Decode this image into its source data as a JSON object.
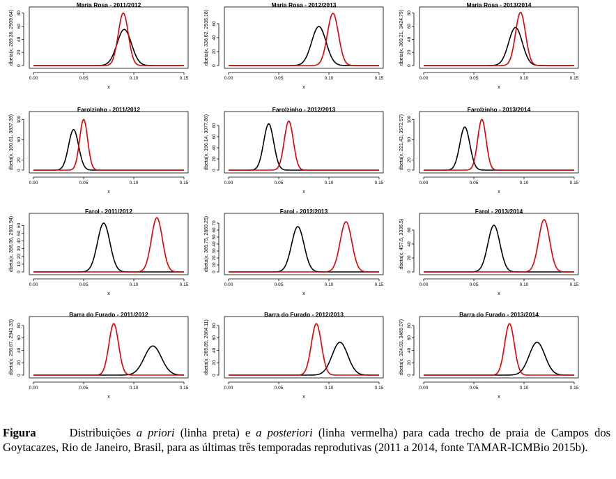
{
  "chart_data": [
    {
      "type": "line",
      "title": "Maria Rosa - 2011/2012",
      "ylabel": "dbeta(x, 289.36, 2909.64)",
      "xlabel": "x",
      "xlim": [
        0,
        0.15
      ],
      "xticks": [
        "0.00",
        "0.05",
        "0.10",
        "0.15"
      ],
      "yticks": [
        "0",
        "20",
        "40",
        "60",
        "80"
      ],
      "ylim": [
        0,
        85
      ],
      "series": [
        {
          "color": "#000000",
          "mean": 0.0905,
          "sd": 0.0072,
          "peak": 55
        },
        {
          "color": "#e00000",
          "mean": 0.0895,
          "sd": 0.005,
          "peak": 80
        }
      ]
    },
    {
      "type": "line",
      "title": "Maria Rosa - 2012/2013",
      "ylabel": "dbeta(x, 338.62, 2935.18)",
      "xlabel": "x",
      "xlim": [
        0,
        0.15
      ],
      "xticks": [
        "0.00",
        "0.05",
        "0.10",
        "0.15"
      ],
      "yticks": [
        "0",
        "20",
        "40",
        "60"
      ],
      "ylim": [
        0,
        80
      ],
      "series": [
        {
          "color": "#000000",
          "mean": 0.09,
          "sd": 0.0072,
          "peak": 56
        },
        {
          "color": "#e00000",
          "mean": 0.104,
          "sd": 0.0055,
          "peak": 75
        }
      ]
    },
    {
      "type": "line",
      "title": "Maria Rosa - 2013/2014",
      "ylabel": "dbeta(x, 369.21, 3424.79)",
      "xlabel": "x",
      "xlim": [
        0,
        0.15
      ],
      "xticks": [
        "0.00",
        "0.05",
        "0.10",
        "0.15"
      ],
      "yticks": [
        "0",
        "20",
        "40",
        "60",
        "80"
      ],
      "ylim": [
        0,
        85
      ],
      "series": [
        {
          "color": "#000000",
          "mean": 0.0915,
          "sd": 0.0068,
          "peak": 58
        },
        {
          "color": "#e00000",
          "mean": 0.0965,
          "sd": 0.005,
          "peak": 81
        }
      ]
    },
    {
      "type": "line",
      "title": "Farolzinho - 2011/2012",
      "ylabel": "dbeta(x, 160.61, 3837.39)",
      "xlabel": "x",
      "xlim": [
        0,
        0.15
      ],
      "xticks": [
        "0.00",
        "0.05",
        "0.10",
        "0.15"
      ],
      "yticks": [
        "0",
        "20",
        "60",
        "100"
      ],
      "ylim": [
        0,
        110
      ],
      "series": [
        {
          "color": "#000000",
          "mean": 0.04,
          "sd": 0.005,
          "peak": 80
        },
        {
          "color": "#e00000",
          "mean": 0.05,
          "sd": 0.004,
          "peak": 100
        }
      ]
    },
    {
      "type": "line",
      "title": "Farolzinho - 2012/2013",
      "ylabel": "dbeta(x, 196.14, 3077.86)",
      "xlabel": "x",
      "xlim": [
        0,
        0.15
      ],
      "xticks": [
        "0.00",
        "0.05",
        "0.10",
        "0.15"
      ],
      "yticks": [
        "0",
        "20",
        "40",
        "60",
        "80"
      ],
      "ylim": [
        0,
        100
      ],
      "series": [
        {
          "color": "#000000",
          "mean": 0.04,
          "sd": 0.005,
          "peak": 83
        },
        {
          "color": "#e00000",
          "mean": 0.06,
          "sd": 0.0045,
          "peak": 88
        }
      ]
    },
    {
      "type": "line",
      "title": "Farolzinho - 2013/2014",
      "ylabel": "dbeta(x, 221.43, 3572.57)",
      "xlabel": "x",
      "xlim": [
        0,
        0.15
      ],
      "xticks": [
        "0.00",
        "0.05",
        "0.10",
        "0.15"
      ],
      "yticks": [
        "0",
        "20",
        "60",
        "100"
      ],
      "ylim": [
        0,
        110
      ],
      "series": [
        {
          "color": "#000000",
          "mean": 0.041,
          "sd": 0.005,
          "peak": 85
        },
        {
          "color": "#e00000",
          "mean": 0.058,
          "sd": 0.0042,
          "peak": 100
        }
      ]
    },
    {
      "type": "line",
      "title": "Farol - 2011/2012",
      "ylabel": "dbeta(x, 398.06, 2601.94)",
      "xlabel": "x",
      "xlim": [
        0,
        0.15
      ],
      "xticks": [
        "0.00",
        "0.05",
        "0.10",
        "0.15"
      ],
      "yticks": [
        "0",
        "10",
        "20",
        "30",
        "40",
        "50",
        "60"
      ],
      "ylim": [
        0,
        72
      ],
      "series": [
        {
          "color": "#000000",
          "mean": 0.07,
          "sd": 0.0062,
          "peak": 63
        },
        {
          "color": "#e00000",
          "mean": 0.123,
          "sd": 0.0055,
          "peak": 70
        }
      ]
    },
    {
      "type": "line",
      "title": "Farol - 2012/2013",
      "ylabel": "dbeta(x, 389.75, 2860.25)",
      "xlabel": "x",
      "xlim": [
        0,
        0.15
      ],
      "xticks": [
        "0.00",
        "0.05",
        "0.10",
        "0.15"
      ],
      "yticks": [
        "0",
        "10",
        "20",
        "30",
        "40",
        "50",
        "60",
        "70"
      ],
      "ylim": [
        0,
        80
      ],
      "series": [
        {
          "color": "#000000",
          "mean": 0.069,
          "sd": 0.0062,
          "peak": 65
        },
        {
          "color": "#e00000",
          "mean": 0.117,
          "sd": 0.0058,
          "peak": 72
        }
      ]
    },
    {
      "type": "line",
      "title": "Farol - 2013/2014",
      "ylabel": "dbeta(x, 457.5, 3336.5)",
      "xlabel": "x",
      "xlim": [
        0,
        0.15
      ],
      "xticks": [
        "0.00",
        "0.05",
        "0.10",
        "0.15"
      ],
      "yticks": [
        "0",
        "20",
        "40",
        "60"
      ],
      "ylim": [
        0,
        80
      ],
      "series": [
        {
          "color": "#000000",
          "mean": 0.07,
          "sd": 0.006,
          "peak": 67
        },
        {
          "color": "#e00000",
          "mean": 0.12,
          "sd": 0.0055,
          "peak": 75
        }
      ]
    },
    {
      "type": "line",
      "title": "Barra do Furado - 2011/2012",
      "ylabel": "dbeta(x, 256.67, 2941.33)",
      "xlabel": "x",
      "xlim": [
        0,
        0.15
      ],
      "xticks": [
        "0.00",
        "0.05",
        "0.10",
        "0.15"
      ],
      "yticks": [
        "0",
        "20",
        "40",
        "60",
        "80"
      ],
      "ylim": [
        0,
        90
      ],
      "series": [
        {
          "color": "#000000",
          "mean": 0.119,
          "sd": 0.0085,
          "peak": 47
        },
        {
          "color": "#e00000",
          "mean": 0.08,
          "sd": 0.0048,
          "peak": 83
        }
      ]
    },
    {
      "type": "line",
      "title": "Barra do Furado - 2012/2013",
      "ylabel": "dbeta(x, 289.89, 2664.11)",
      "xlabel": "x",
      "xlim": [
        0,
        0.15
      ],
      "xticks": [
        "0.00",
        "0.05",
        "0.10",
        "0.15"
      ],
      "yticks": [
        "0",
        "20",
        "40",
        "60",
        "80"
      ],
      "ylim": [
        0,
        90
      ],
      "series": [
        {
          "color": "#000000",
          "mean": 0.111,
          "sd": 0.0078,
          "peak": 53
        },
        {
          "color": "#e00000",
          "mean": 0.0875,
          "sd": 0.005,
          "peak": 83
        }
      ]
    },
    {
      "type": "line",
      "title": "Barra do Furado - 2013/2014",
      "ylabel": "dbeta(x, 324.93, 3469.07)",
      "xlabel": "x",
      "xlim": [
        0,
        0.15
      ],
      "xticks": [
        "0.00",
        "0.05",
        "0.10",
        "0.15"
      ],
      "yticks": [
        "0",
        "20",
        "40",
        "60",
        "80"
      ],
      "ylim": [
        0,
        90
      ],
      "series": [
        {
          "color": "#000000",
          "mean": 0.113,
          "sd": 0.0078,
          "peak": 53
        },
        {
          "color": "#e00000",
          "mean": 0.0855,
          "sd": 0.0048,
          "peak": 83
        }
      ]
    }
  ],
  "caption": {
    "label": "Figura",
    "part1": "Distribuições ",
    "prior": "a priori",
    "part2": " (linha preta) e ",
    "posterior": "a posteriori",
    "part3": " (linha vermelha) para cada trecho de praia de Campos dos Goytacazes, Rio de Janeiro, Brasil, para as últimas três temporadas reprodutivas (2011 a 2014, fonte TAMAR-ICMBio 2015b)."
  }
}
